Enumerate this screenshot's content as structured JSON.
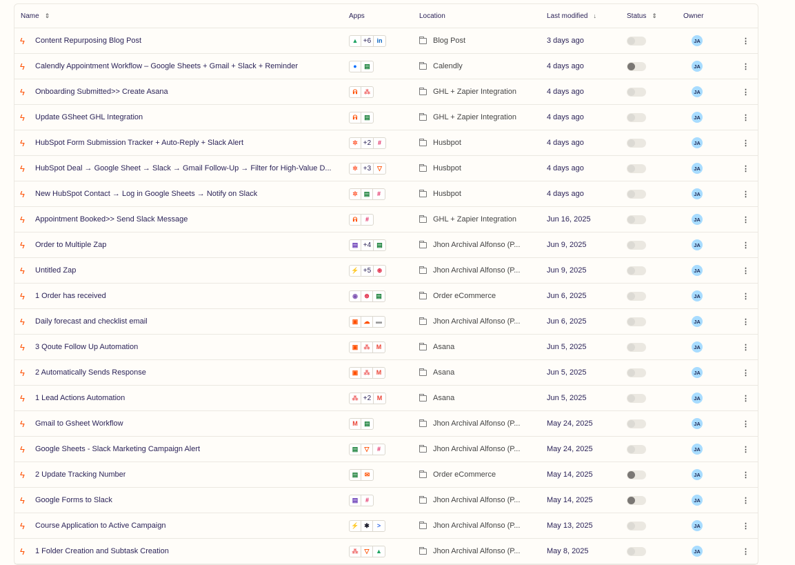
{
  "header": {
    "name": "Name",
    "apps": "Apps",
    "location": "Location",
    "last_modified": "Last modified",
    "status": "Status",
    "owner": "Owner",
    "sort_icon": "⇕",
    "sort_desc_icon": "↓"
  },
  "app_icons": {
    "google-drive": {
      "glyph": "▲",
      "color": "#1fa463"
    },
    "linkedin": {
      "glyph": "in",
      "color": "#0a66c2"
    },
    "calendly": {
      "glyph": "●",
      "color": "#006bff"
    },
    "google-sheets": {
      "glyph": "▤",
      "color": "#188038"
    },
    "webhook": {
      "glyph": "ᕱ",
      "color": "#ff4f00"
    },
    "asana": {
      "glyph": "⁂",
      "color": "#f06a6a"
    },
    "hubspot": {
      "glyph": "✲",
      "color": "#ff5c35"
    },
    "slack": {
      "glyph": "#",
      "color": "#e01e5a"
    },
    "filter": {
      "glyph": "▽",
      "color": "#ff4f00"
    },
    "google-forms": {
      "glyph": "▤",
      "color": "#673ab7"
    },
    "formatter": {
      "glyph": "⚡",
      "color": "#3d6ff5"
    },
    "woocommerce": {
      "glyph": "◉",
      "color": "#7f54b3"
    },
    "toggl": {
      "glyph": "⊛",
      "color": "#e01e3c"
    },
    "schedule": {
      "glyph": "▣",
      "color": "#ff4f00"
    },
    "weather": {
      "glyph": "☁",
      "color": "#ff4f00"
    },
    "generic": {
      "glyph": "▬",
      "color": "#9a9a9a"
    },
    "gmail": {
      "glyph": "M",
      "color": "#ea4335"
    },
    "email": {
      "glyph": "✉",
      "color": "#ff4f00"
    },
    "cursor": {
      "glyph": "✱",
      "color": "#1d1d2c"
    },
    "activecampaign": {
      "glyph": ">",
      "color": "#356ae6"
    }
  },
  "owner_initials": "JA",
  "rows": [
    {
      "name": "Content Repurposing Blog Post",
      "apps": [
        "google-drive",
        "+6",
        "linkedin"
      ],
      "location": "Blog Post",
      "modified": "3 days ago",
      "knob_dark": false
    },
    {
      "name": "Calendly Appointment Workflow – Google Sheets + Gmail + Slack + Reminder",
      "apps": [
        "calendly",
        "google-sheets"
      ],
      "location": "Calendly",
      "modified": "4 days ago",
      "knob_dark": true
    },
    {
      "name": "Onboarding Submitted>> Create Asana",
      "apps": [
        "webhook",
        "asana"
      ],
      "location": "GHL + Zapier Integration",
      "modified": "4 days ago",
      "knob_dark": false
    },
    {
      "name": "Update GSheet GHL Integration",
      "apps": [
        "webhook",
        "google-sheets"
      ],
      "location": "GHL + Zapier Integration",
      "modified": "4 days ago",
      "knob_dark": false
    },
    {
      "name": "HubSpot Form Submission Tracker + Auto-Reply + Slack Alert",
      "apps": [
        "hubspot",
        "+2",
        "slack"
      ],
      "location": "Husbpot",
      "modified": "4 days ago",
      "knob_dark": false
    },
    {
      "name": "HubSpot Deal → Google Sheet → Slack → Gmail Follow-Up → Filter for High-Value D...",
      "apps": [
        "hubspot",
        "+3",
        "filter"
      ],
      "location": "Husbpot",
      "modified": "4 days ago",
      "knob_dark": false
    },
    {
      "name": "New HubSpot Contact → Log in Google Sheets → Notify on Slack",
      "apps": [
        "hubspot",
        "google-sheets",
        "slack"
      ],
      "location": "Husbpot",
      "modified": "4 days ago",
      "knob_dark": false
    },
    {
      "name": "Appointment Booked>> Send Slack Message",
      "apps": [
        "webhook",
        "slack"
      ],
      "location": "GHL + Zapier Integration",
      "modified": "Jun 16, 2025",
      "knob_dark": false
    },
    {
      "name": "Order to Multiple Zap",
      "apps": [
        "google-forms",
        "+4",
        "google-sheets"
      ],
      "location": "Jhon Archival Alfonso (P...",
      "modified": "Jun 9, 2025",
      "knob_dark": false
    },
    {
      "name": "Untitled Zap",
      "apps": [
        "formatter",
        "+5",
        "toggl"
      ],
      "location": "Jhon Archival Alfonso (P...",
      "modified": "Jun 9, 2025",
      "knob_dark": false
    },
    {
      "name": "1 Order has received",
      "apps": [
        "woocommerce",
        "toggl",
        "google-sheets"
      ],
      "location": "Order eCommerce",
      "modified": "Jun 6, 2025",
      "knob_dark": false
    },
    {
      "name": "Daily forecast and checklist email",
      "apps": [
        "schedule",
        "weather",
        "generic"
      ],
      "location": "Jhon Archival Alfonso (P...",
      "modified": "Jun 6, 2025",
      "knob_dark": false
    },
    {
      "name": "3 Qoute Follow Up Automation",
      "apps": [
        "schedule",
        "asana",
        "gmail"
      ],
      "location": "Asana",
      "modified": "Jun 5, 2025",
      "knob_dark": false
    },
    {
      "name": "2 Automatically Sends Response",
      "apps": [
        "schedule",
        "asana",
        "gmail"
      ],
      "location": "Asana",
      "modified": "Jun 5, 2025",
      "knob_dark": false
    },
    {
      "name": "1 Lead Actions Automation",
      "apps": [
        "asana",
        "+2",
        "gmail"
      ],
      "location": "Asana",
      "modified": "Jun 5, 2025",
      "knob_dark": false
    },
    {
      "name": "Gmail to Gsheet Workflow",
      "apps": [
        "gmail",
        "google-sheets"
      ],
      "location": "Jhon Archival Alfonso (P...",
      "modified": "May 24, 2025",
      "knob_dark": false
    },
    {
      "name": "Google Sheets - Slack Marketing Campaign Alert",
      "apps": [
        "google-sheets",
        "filter",
        "slack"
      ],
      "location": "Jhon Archival Alfonso (P...",
      "modified": "May 24, 2025",
      "knob_dark": false
    },
    {
      "name": "2 Update Tracking Number",
      "apps": [
        "google-sheets",
        "email"
      ],
      "location": "Order eCommerce",
      "modified": "May 14, 2025",
      "knob_dark": true
    },
    {
      "name": "Google Forms to Slack",
      "apps": [
        "google-forms",
        "slack"
      ],
      "location": "Jhon Archival Alfonso (P...",
      "modified": "May 14, 2025",
      "knob_dark": true
    },
    {
      "name": "Course Application to Active Campaign",
      "apps": [
        "formatter",
        "cursor",
        "activecampaign"
      ],
      "location": "Jhon Archival Alfonso (P...",
      "modified": "May 13, 2025",
      "knob_dark": false
    },
    {
      "name": "1 Folder Creation and Subtask Creation",
      "apps": [
        "asana",
        "filter",
        "google-drive"
      ],
      "location": "Jhon Archival Alfonso (P...",
      "modified": "May 8, 2025",
      "knob_dark": false
    }
  ]
}
